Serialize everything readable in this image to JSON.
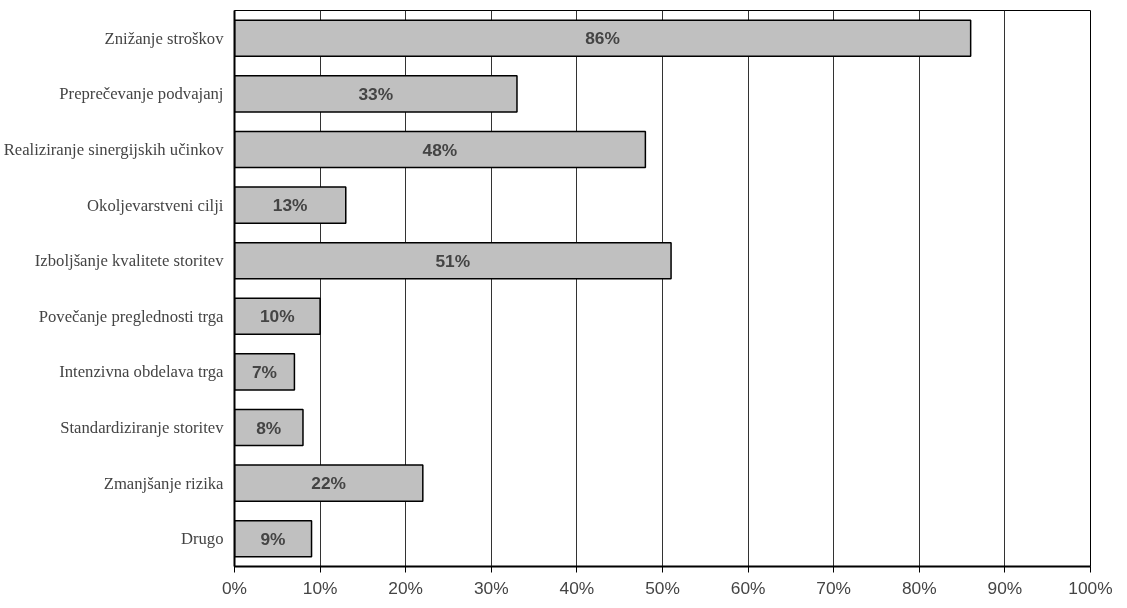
{
  "chart_data": {
    "type": "bar",
    "orientation": "horizontal",
    "categories": [
      "Znižanje stroškov",
      "Preprečevanje podvajanj",
      "Realiziranje sinergijskih učinkov",
      "Okoljevarstveni cilji",
      "Izboljšanje kvalitete storitev",
      "Povečanje preglednosti trga",
      "Intenzivna obdelava trga",
      "Standardiziranje storitev",
      "Zmanjšanje rizika",
      "Drugo"
    ],
    "values": [
      86,
      33,
      48,
      13,
      51,
      10,
      7,
      8,
      22,
      9
    ],
    "value_labels": [
      "86%",
      "33%",
      "48%",
      "13%",
      "51%",
      "10%",
      "7%",
      "8%",
      "22%",
      "9%"
    ],
    "color": "#c0c0c0",
    "grid": "x",
    "xlim": [
      0,
      100
    ],
    "xticks": [
      {
        "value": 0,
        "label": "0%"
      },
      {
        "value": 10,
        "label": "10%"
      },
      {
        "value": 20,
        "label": "20%"
      },
      {
        "value": 30,
        "label": "30%"
      },
      {
        "value": 40,
        "label": "40%"
      },
      {
        "value": 50,
        "label": "50%"
      },
      {
        "value": 60,
        "label": "60%"
      },
      {
        "value": 70,
        "label": "70%"
      },
      {
        "value": 80,
        "label": "80%"
      },
      {
        "value": 90,
        "label": "90%"
      },
      {
        "value": 100,
        "label": "100%"
      }
    ]
  }
}
